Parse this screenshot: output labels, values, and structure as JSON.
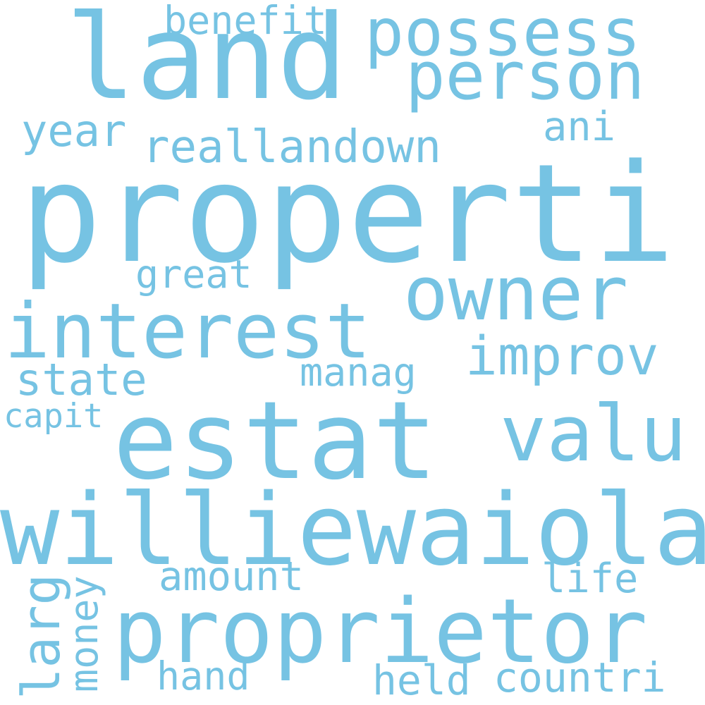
{
  "cloud": {
    "color": "#76c3e3",
    "words": {
      "properti": "properti",
      "land": "land",
      "estat": "estat",
      "williewaiola": "williewaiola",
      "proprietor": "proprietor",
      "possess": "possess",
      "person": "person",
      "owner": "owner",
      "interest": "interest",
      "reallandown": "reallandown",
      "valu": "valu",
      "improv": "improv",
      "benefit": "benefit",
      "year": "year",
      "ani": "ani",
      "great": "great",
      "state": "state",
      "manag": "manag",
      "capit": "capit",
      "amount": "amount",
      "life": "life",
      "larg": "larg",
      "money": "money",
      "hand": "hand",
      "held": "held",
      "countri": "countri"
    }
  }
}
